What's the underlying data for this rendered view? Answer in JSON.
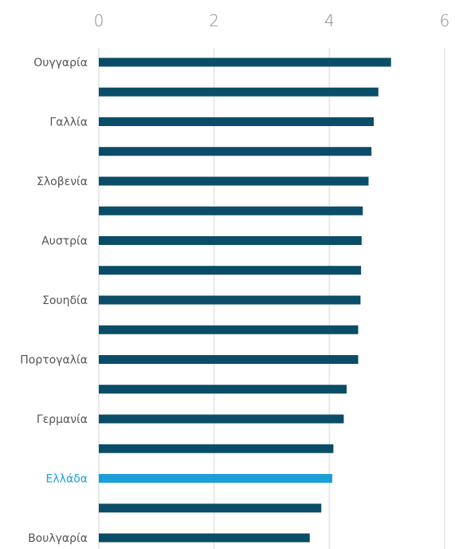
{
  "chart_data": {
    "type": "bar",
    "orientation": "horizontal",
    "x_ticks": [
      0,
      2,
      4,
      6
    ],
    "xlim": [
      0,
      6
    ],
    "axis_position": "top",
    "grid": true,
    "bar_color": "#0a4d68",
    "highlight_color": "#1a9fd6",
    "categories": [
      "Ουγγαρία",
      "",
      "Γαλλία",
      "",
      "Σλοβενία",
      "",
      "Αυστρία",
      "",
      "Σουηδία",
      "",
      "Πορτογαλία",
      "",
      "Γερμανία",
      "",
      "Ελλάδα",
      "",
      "Βουλγαρία"
    ],
    "values": [
      5.07,
      4.85,
      4.77,
      4.73,
      4.68,
      4.58,
      4.56,
      4.55,
      4.54,
      4.5,
      4.5,
      4.3,
      4.25,
      4.07,
      4.05,
      3.86,
      3.66
    ],
    "highlight": [
      "Ελλάδα"
    ]
  }
}
